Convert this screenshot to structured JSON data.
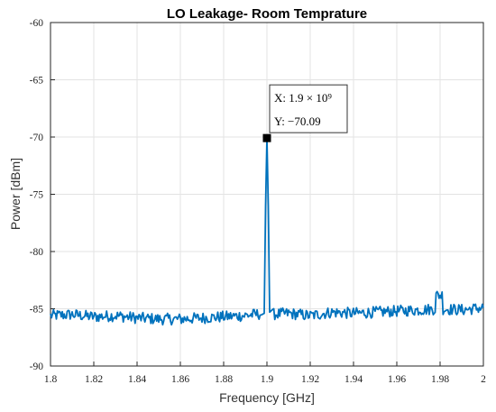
{
  "chart_data": {
    "type": "line",
    "title": "LO Leakage- Room Temprature",
    "xlabel": "Frequency [GHz]",
    "ylabel": "Power [dBm]",
    "xlim": [
      1.8,
      2.0
    ],
    "ylim": [
      -90,
      -60
    ],
    "x_ticks": [
      "1.8",
      "1.82",
      "1.84",
      "1.86",
      "1.88",
      "1.9",
      "1.92",
      "1.94",
      "1.96",
      "1.98",
      "2"
    ],
    "y_ticks": [
      "-60",
      "-65",
      "-70",
      "-75",
      "-80",
      "-85",
      "-90"
    ],
    "grid": true,
    "series": [
      {
        "color": "#0072BD",
        "x": [
          1.8,
          1.81,
          1.82,
          1.83,
          1.84,
          1.85,
          1.86,
          1.87,
          1.88,
          1.889,
          1.8995,
          1.9,
          1.9005,
          1.901,
          1.91,
          1.92,
          1.93,
          1.94,
          1.95,
          1.96,
          1.97,
          1.98,
          1.99,
          2.0
        ],
        "y": [
          -85.6,
          -85.5,
          -85.7,
          -85.6,
          -85.8,
          -85.9,
          -85.9,
          -85.8,
          -85.7,
          -85.6,
          -85.4,
          -70.09,
          -85.3,
          -85.5,
          -85.4,
          -85.6,
          -85.3,
          -85.4,
          -85.3,
          -85.2,
          -85.1,
          -85.0,
          -85.1,
          -84.9
        ]
      }
    ],
    "datatip": {
      "x_label": "X: 1.9 × 10⁹",
      "y_label": "Y: −70.09",
      "x": 1.9,
      "y": -70.09
    }
  }
}
